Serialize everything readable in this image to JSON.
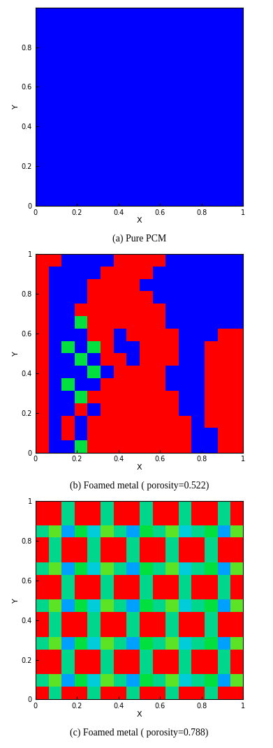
{
  "chart_data": [
    {
      "type": "heatmap",
      "caption": "(a) Pure PCM",
      "x_label": "X",
      "y_label": "Y",
      "xlim": [
        0,
        1
      ],
      "ylim": [
        0,
        1
      ],
      "xticks": [
        0,
        0.2,
        0.4,
        0.6,
        0.8,
        1
      ],
      "yticks": [
        0,
        0.2,
        0.4,
        0.6,
        0.8
      ],
      "value_range": [
        0,
        1
      ],
      "cells": [
        [
          0,
          0,
          0,
          0,
          0,
          0,
          0,
          0,
          0,
          0,
          0,
          0,
          0,
          0,
          0,
          0
        ],
        [
          0,
          0,
          0,
          0,
          0,
          0,
          0,
          0,
          0,
          0,
          0,
          0,
          0,
          0,
          0,
          0
        ],
        [
          0,
          0,
          0,
          0,
          0,
          0,
          0,
          0,
          0,
          0,
          0,
          0,
          0,
          0,
          0,
          0
        ],
        [
          0,
          0,
          0,
          0,
          0,
          0,
          0,
          0,
          0,
          0,
          0,
          0,
          0,
          0,
          0,
          0
        ],
        [
          0,
          0,
          0,
          0,
          0,
          0,
          0,
          0,
          0,
          0,
          0,
          0,
          0,
          0,
          0,
          0
        ],
        [
          0,
          0,
          0,
          0,
          0,
          0,
          0,
          0,
          0,
          0,
          0,
          0,
          0,
          0,
          0,
          0
        ],
        [
          0,
          0,
          0,
          0,
          0,
          0,
          0,
          0,
          0,
          0,
          0,
          0,
          0,
          0,
          0,
          0
        ],
        [
          0,
          0,
          0,
          0,
          0,
          0,
          0,
          0,
          0,
          0,
          0,
          0,
          0,
          0,
          0,
          0
        ],
        [
          0,
          0,
          0,
          0,
          0,
          0,
          0,
          0,
          0,
          0,
          0,
          0,
          0,
          0,
          0,
          0
        ],
        [
          0,
          0,
          0,
          0,
          0,
          0,
          0,
          0,
          0,
          0,
          0,
          0,
          0,
          0,
          0,
          0
        ],
        [
          0,
          0,
          0,
          0,
          0,
          0,
          0,
          0,
          0,
          0,
          0,
          0,
          0,
          0,
          0,
          0
        ],
        [
          0,
          0,
          0,
          0,
          0,
          0,
          0,
          0,
          0,
          0,
          0,
          0,
          0,
          0,
          0,
          0
        ],
        [
          0,
          0,
          0,
          0,
          0,
          0,
          0,
          0,
          0,
          0,
          0,
          0,
          0,
          0,
          0,
          0
        ],
        [
          0,
          0,
          0,
          0,
          0,
          0,
          0,
          0,
          0,
          0,
          0,
          0,
          0,
          0,
          0,
          0
        ],
        [
          0,
          0,
          0,
          0,
          0,
          0,
          0,
          0,
          0,
          0,
          0,
          0,
          0,
          0,
          0,
          0
        ],
        [
          0,
          0,
          0,
          0,
          0,
          0,
          0,
          0,
          0,
          0,
          0,
          0,
          0,
          0,
          0,
          0
        ]
      ]
    },
    {
      "type": "heatmap",
      "caption": "(b) Foamed metal ( porosity=0.522)",
      "x_label": "X",
      "y_label": "Y",
      "xlim": [
        0,
        1
      ],
      "ylim": [
        0,
        1
      ],
      "xticks": [
        0,
        0.2,
        0.4,
        0.6,
        0.8,
        1
      ],
      "yticks": [
        0,
        0.2,
        0.4,
        0.6,
        0.8,
        1
      ],
      "value_range": [
        0,
        1
      ],
      "cells": [
        [
          1,
          1,
          0,
          0,
          0,
          0,
          1,
          1,
          1,
          1,
          0,
          0,
          0,
          0,
          0,
          0
        ],
        [
          1,
          0,
          0,
          0,
          0,
          1,
          1,
          1,
          1,
          0,
          0,
          0,
          0,
          0,
          0,
          0
        ],
        [
          1,
          0,
          0,
          0,
          1,
          1,
          1,
          1,
          0,
          0,
          0,
          0,
          0,
          0,
          0,
          0
        ],
        [
          1,
          0,
          0,
          0,
          1,
          1,
          1,
          1,
          1,
          0,
          0,
          0,
          0,
          0,
          0,
          0
        ],
        [
          1,
          0,
          0,
          1,
          1,
          1,
          1,
          1,
          1,
          1,
          0,
          0,
          0,
          0,
          0,
          0
        ],
        [
          1,
          0,
          0,
          0.5,
          1,
          1,
          1,
          1,
          1,
          1,
          0,
          0,
          0,
          0,
          0,
          0
        ],
        [
          1,
          0,
          0,
          0,
          1,
          1,
          0,
          1,
          1,
          1,
          1,
          0,
          0,
          0,
          1,
          1
        ],
        [
          1,
          0,
          0.5,
          0,
          0.5,
          1,
          0,
          0,
          1,
          1,
          1,
          0,
          0,
          1,
          1,
          1
        ],
        [
          1,
          0,
          0,
          0.5,
          0,
          1,
          1,
          0,
          1,
          1,
          1,
          0,
          0,
          1,
          1,
          1
        ],
        [
          1,
          0,
          0,
          0,
          0.5,
          0,
          1,
          1,
          1,
          1,
          0,
          0,
          0,
          1,
          1,
          1
        ],
        [
          1,
          0,
          0.5,
          0,
          0,
          1,
          1,
          1,
          1,
          1,
          0,
          0,
          0,
          1,
          1,
          1
        ],
        [
          1,
          0,
          0,
          0.5,
          1,
          1,
          1,
          1,
          1,
          1,
          1,
          0,
          0,
          1,
          1,
          1
        ],
        [
          1,
          0,
          0,
          1,
          0,
          1,
          1,
          1,
          1,
          1,
          1,
          0,
          0,
          1,
          1,
          1
        ],
        [
          1,
          0,
          1,
          0,
          1,
          1,
          1,
          1,
          1,
          1,
          1,
          1,
          0,
          1,
          1,
          1
        ],
        [
          1,
          0,
          1,
          0,
          1,
          1,
          1,
          1,
          1,
          1,
          1,
          1,
          0,
          0,
          1,
          1
        ],
        [
          1,
          0,
          0,
          0.5,
          1,
          1,
          1,
          1,
          1,
          1,
          1,
          1,
          0,
          0,
          1,
          1
        ]
      ]
    },
    {
      "type": "heatmap",
      "caption": "(c) Foamed metal ( porosity=0.788)",
      "x_label": "X",
      "y_label": "Y",
      "xlim": [
        0,
        1
      ],
      "ylim": [
        0,
        1
      ],
      "xticks": [
        0,
        0.2,
        0.4,
        0.6,
        0.8,
        1
      ],
      "yticks": [
        0,
        0.2,
        0.4,
        0.6,
        0.8,
        1
      ],
      "value_range": [
        0,
        1
      ],
      "cells": [
        [
          1,
          1,
          0.4,
          1,
          1,
          0.4,
          1,
          1,
          0.4,
          1,
          1,
          0.4,
          1,
          1,
          0.4,
          1
        ],
        [
          1,
          1,
          0.4,
          1,
          1,
          0.4,
          1,
          1,
          0.4,
          1,
          1,
          0.4,
          1,
          1,
          0.4,
          1
        ],
        [
          0.4,
          0.6,
          0.2,
          0.5,
          0.3,
          0.6,
          0.4,
          0.2,
          0.5,
          0.4,
          0.6,
          0.3,
          0.4,
          0.5,
          0.2,
          0.6
        ],
        [
          1,
          0.4,
          1,
          1,
          0.4,
          1,
          1,
          0.4,
          1,
          1,
          0.4,
          1,
          1,
          0.4,
          1,
          1
        ],
        [
          1,
          0.4,
          1,
          1,
          0.4,
          1,
          1,
          0.4,
          1,
          1,
          0.4,
          1,
          1,
          0.4,
          1,
          1
        ],
        [
          0.4,
          0.6,
          0.2,
          0.5,
          0.3,
          0.6,
          0.4,
          0.2,
          0.5,
          0.4,
          0.6,
          0.3,
          0.4,
          0.5,
          0.2,
          0.6
        ],
        [
          1,
          1,
          0.4,
          1,
          1,
          0.4,
          1,
          1,
          0.4,
          1,
          1,
          0.4,
          1,
          1,
          0.4,
          1
        ],
        [
          1,
          1,
          0.4,
          1,
          1,
          0.4,
          1,
          1,
          0.4,
          1,
          1,
          0.4,
          1,
          1,
          0.4,
          1
        ],
        [
          0.4,
          0.6,
          0.2,
          0.5,
          0.3,
          0.6,
          0.4,
          0.2,
          0.5,
          0.4,
          0.6,
          0.3,
          0.4,
          0.5,
          0.2,
          0.6
        ],
        [
          1,
          0.4,
          1,
          1,
          0.4,
          1,
          1,
          0.4,
          1,
          1,
          0.4,
          1,
          1,
          0.4,
          1,
          1
        ],
        [
          1,
          0.4,
          1,
          1,
          0.4,
          1,
          1,
          0.4,
          1,
          1,
          0.4,
          1,
          1,
          0.4,
          1,
          1
        ],
        [
          0.4,
          0.6,
          0.2,
          0.5,
          0.3,
          0.6,
          0.4,
          0.2,
          0.5,
          0.4,
          0.6,
          0.3,
          0.4,
          0.5,
          0.2,
          0.6
        ],
        [
          1,
          1,
          0.4,
          1,
          1,
          0.4,
          1,
          1,
          0.4,
          1,
          1,
          0.4,
          1,
          1,
          0.4,
          1
        ],
        [
          1,
          1,
          0.4,
          1,
          1,
          0.4,
          1,
          1,
          0.4,
          1,
          1,
          0.4,
          1,
          1,
          0.4,
          1
        ],
        [
          0.4,
          0.6,
          0.2,
          0.5,
          0.3,
          0.6,
          0.4,
          0.2,
          0.5,
          0.4,
          0.6,
          0.3,
          0.4,
          0.5,
          0.2,
          0.6
        ],
        [
          1,
          0.4,
          1,
          1,
          0.4,
          1,
          1,
          0.4,
          1,
          1,
          0.4,
          1,
          1,
          0.4,
          1,
          1
        ]
      ]
    }
  ]
}
